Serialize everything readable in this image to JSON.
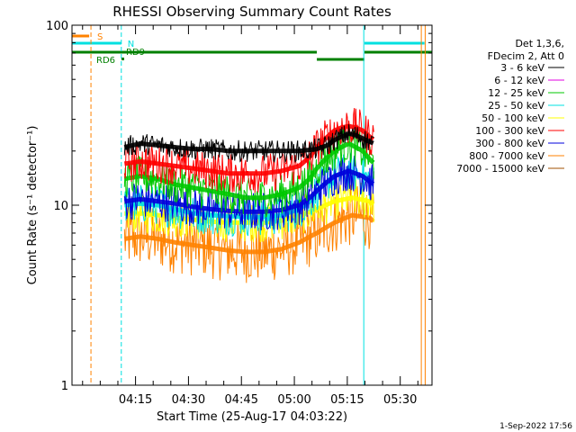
{
  "chart_data": {
    "type": "line",
    "title": "RHESSI Observing Summary Count Rates",
    "xlabel": "Start Time (25-Aug-17 04:03:22)",
    "ylabel": "Count Rate (s⁻¹ detector⁻¹)",
    "yscale": "log",
    "ylim": [
      1,
      100
    ],
    "xlim_minutes": [
      -6.37,
      95.63
    ],
    "x_tick_labels": [
      "04:15",
      "04:30",
      "04:45",
      "05:00",
      "05:15",
      "05:30"
    ],
    "x_tick_minutes": [
      11.63,
      26.63,
      41.63,
      56.63,
      71.63,
      86.63
    ],
    "y_tick_labels": [
      "1",
      "10",
      "100"
    ],
    "y_tick_values": [
      1,
      10,
      100
    ],
    "grid": false,
    "legend_position": "right",
    "legend_header": [
      "Det 1,3,6,",
      "FDecim 2, Att 0"
    ],
    "series": [
      {
        "name": "3 - 6 keV",
        "color": "#000000",
        "x_minutes": [
          8.5,
          13,
          18,
          23,
          28,
          33,
          38,
          43,
          48,
          53,
          58,
          63,
          66,
          68,
          70,
          72,
          74,
          76,
          78,
          79.3
        ],
        "values": [
          21,
          22,
          21.5,
          21,
          20.5,
          20.5,
          20,
          20,
          20,
          20,
          20,
          20.5,
          21.5,
          23,
          24,
          25,
          24.5,
          23.5,
          22.5,
          22
        ]
      },
      {
        "name": "6 - 12 keV",
        "color": "#e000e0",
        "x_minutes": [],
        "values": []
      },
      {
        "name": "12 - 25 keV",
        "color": "#00c800",
        "x_minutes": [
          8.5,
          13,
          18,
          23,
          28,
          33,
          38,
          43,
          48,
          53,
          58,
          61,
          63,
          66,
          68,
          70,
          72,
          74,
          76,
          78,
          79.3
        ],
        "values": [
          14,
          14.5,
          14,
          13,
          12.5,
          12,
          11.5,
          11,
          11,
          11.5,
          12.5,
          14,
          16,
          18.5,
          20,
          21,
          22,
          21,
          20,
          18,
          17
        ]
      },
      {
        "name": "25 - 50 keV",
        "color": "#00e0e0",
        "x_minutes": [
          8.5,
          13,
          18,
          23,
          28,
          33,
          38,
          43,
          48,
          53,
          58,
          61,
          63,
          66,
          68,
          70,
          72,
          74,
          76,
          78,
          79.3
        ],
        "values": [
          10,
          10.2,
          10,
          9.5,
          9,
          8.8,
          8.7,
          8.6,
          8.6,
          8.8,
          9.5,
          10.5,
          12,
          13.5,
          14.5,
          15,
          15.5,
          15,
          14.5,
          13.5,
          13
        ]
      },
      {
        "name": "50 - 100 keV",
        "color": "#ffff00",
        "x_minutes": [
          8.5,
          13,
          18,
          23,
          28,
          33,
          38,
          43,
          48,
          53,
          58,
          63,
          68,
          73,
          78,
          79.3
        ],
        "values": [
          9,
          9,
          8.8,
          8.5,
          8.3,
          8.1,
          8,
          8,
          8,
          8.2,
          8.7,
          9.5,
          10.5,
          11,
          10.5,
          10
        ]
      },
      {
        "name": "100 - 300 keV",
        "color": "#ff0000",
        "x_minutes": [
          8.5,
          13,
          18,
          23,
          28,
          33,
          38,
          43,
          48,
          53,
          58,
          61,
          63,
          66,
          68,
          70,
          72,
          74,
          76,
          78,
          79.3
        ],
        "values": [
          17,
          17.5,
          17,
          16.5,
          16,
          15.5,
          15,
          15,
          15,
          15.5,
          16.5,
          18.5,
          21,
          24,
          26,
          27,
          27.5,
          27,
          26,
          24,
          23
        ]
      },
      {
        "name": "300 - 800 keV",
        "color": "#0000dc",
        "x_minutes": [
          8.5,
          13,
          18,
          23,
          28,
          33,
          38,
          43,
          48,
          53,
          58,
          61,
          63,
          66,
          68,
          70,
          72,
          74,
          76,
          78,
          79.3
        ],
        "values": [
          10.5,
          10.8,
          10.5,
          10.2,
          9.8,
          9.5,
          9.3,
          9.2,
          9.2,
          9.4,
          10,
          11,
          12,
          13.5,
          14.5,
          15,
          15.5,
          15,
          14.5,
          13.5,
          13
        ]
      },
      {
        "name": "800 - 7000 keV",
        "color": "#ff8200",
        "x_minutes": [
          8.5,
          13,
          18,
          23,
          28,
          33,
          38,
          43,
          48,
          53,
          58,
          63,
          68,
          73,
          78,
          79.3
        ],
        "values": [
          6.5,
          6.7,
          6.5,
          6.2,
          6,
          5.8,
          5.6,
          5.5,
          5.5,
          5.7,
          6.2,
          7,
          8,
          8.8,
          8.5,
          8
        ]
      },
      {
        "name": "7000 - 15000 keV",
        "color": "#a05000",
        "x_minutes": [],
        "values": []
      }
    ],
    "annotations": [
      {
        "label": "S",
        "color": "#ff8200"
      },
      {
        "label": "N",
        "color": "#00e0e0"
      },
      {
        "label": "RD6",
        "color": "#008000"
      },
      {
        "label": "RD9",
        "color": "#008000"
      }
    ],
    "event_markers": {
      "orange_vertical_minutes": [
        -1.0,
        92.6,
        93.7
      ],
      "cyan_vertical_minutes": [
        7.6,
        76.3
      ],
      "green_segments": [
        {
          "from": -6.37,
          "to": 63.0,
          "level": "upper"
        },
        {
          "from": 63.0,
          "to": 76.5,
          "level": "lower"
        },
        {
          "from": 76.5,
          "to": 95.63,
          "level": "upper"
        }
      ],
      "cyan_segments": [
        {
          "from": -6.37,
          "to": 7.6
        },
        {
          "from": 76.5,
          "to": 93.5
        }
      ],
      "orange_segment": {
        "from": -6.37,
        "to": -1.5
      }
    }
  },
  "footer_timestamp": "1-Sep-2022 17:56"
}
